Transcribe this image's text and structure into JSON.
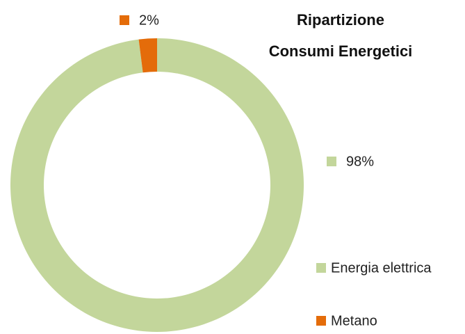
{
  "chart_data": {
    "type": "donut",
    "title": [
      "Ripartizione",
      "Consumi Energetici"
    ],
    "categories": [
      "Energia elettrica",
      "Metano"
    ],
    "values": [
      98,
      2
    ],
    "value_labels": [
      "98%",
      "2%"
    ],
    "colors": [
      "#c3d69b",
      "#e46c0a"
    ],
    "legend": "right"
  }
}
